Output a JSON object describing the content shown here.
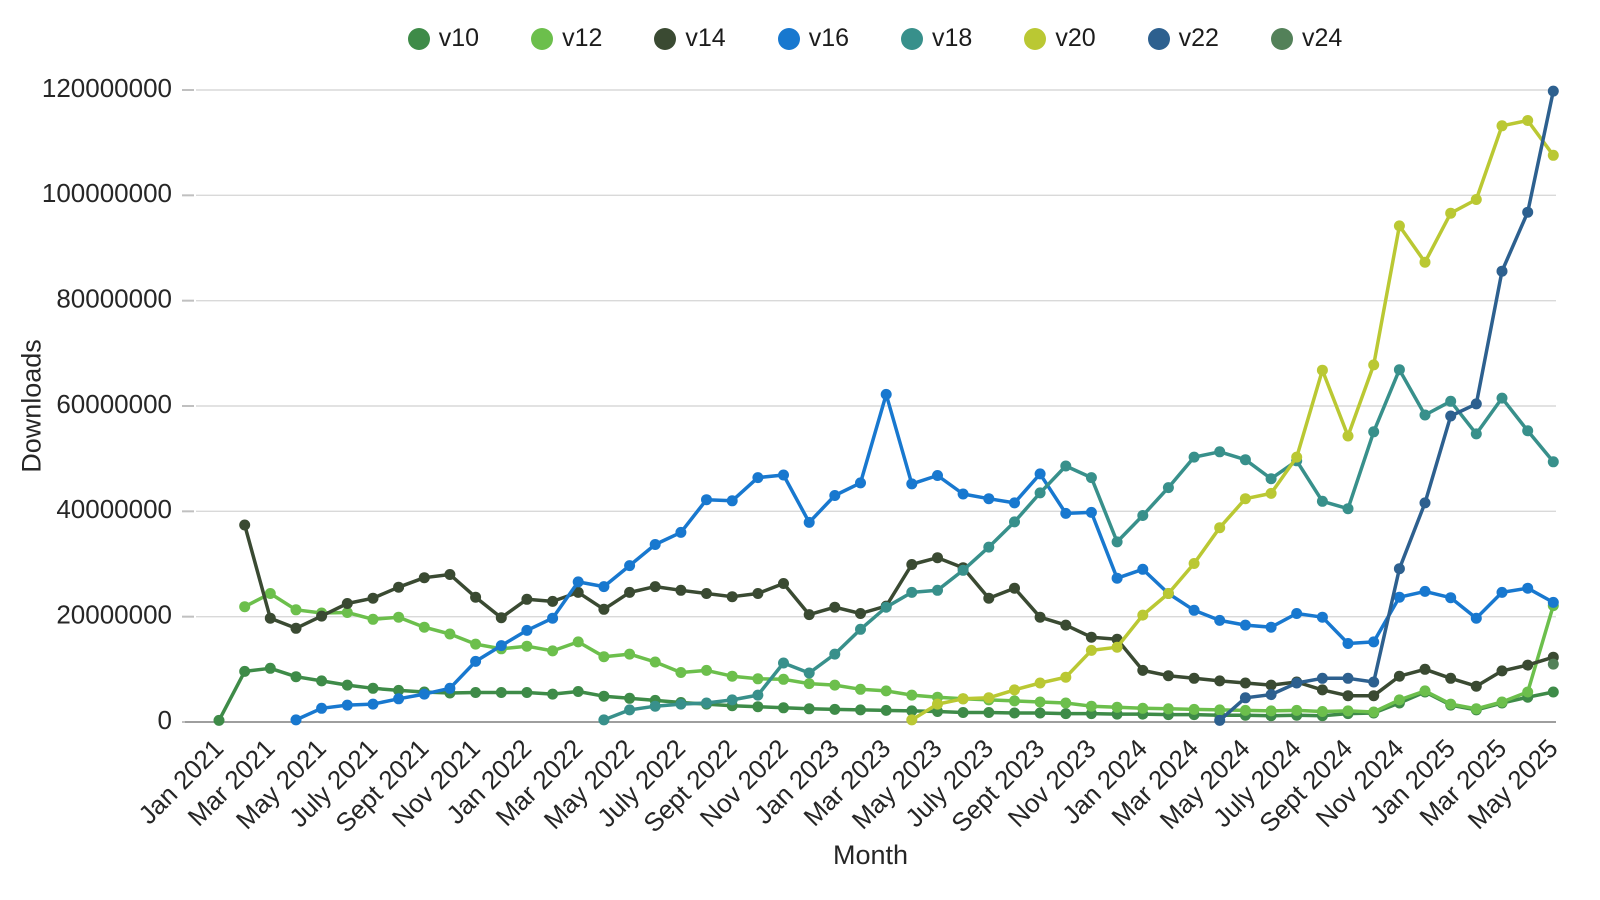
{
  "page": {
    "background": "#ffffff"
  },
  "chart_data": {
    "type": "line",
    "title": "",
    "xlabel": "Month",
    "ylabel": "Downloads",
    "legend_position": "top",
    "grid": "horizontal",
    "ylim": [
      0,
      120000000
    ],
    "yticks": [
      0,
      20000000,
      40000000,
      60000000,
      80000000,
      100000000,
      120000000
    ],
    "x_tick_every": 2,
    "x": [
      "Jan 2021",
      "Feb 2021",
      "Mar 2021",
      "Apr 2021",
      "May 2021",
      "June 2021",
      "July 2021",
      "Aug 2021",
      "Sept 2021",
      "Oct 2021",
      "Nov 2021",
      "Dec 2021",
      "Jan 2022",
      "Feb 2022",
      "Mar 2022",
      "Apr 2022",
      "May 2022",
      "June 2022",
      "July 2022",
      "Aug 2022",
      "Sept 2022",
      "Oct 2022",
      "Nov 2022",
      "Dec 2022",
      "Jan 2023",
      "Feb 2023",
      "Mar 2023",
      "Apr 2023",
      "May 2023",
      "June 2023",
      "July 2023",
      "Aug 2023",
      "Sept 2023",
      "Oct 2023",
      "Nov 2023",
      "Dec 2023",
      "Jan 2024",
      "Feb 2024",
      "Mar 2024",
      "Apr 2024",
      "May 2024",
      "June 2024",
      "July 2024",
      "Aug 2024",
      "Sept 2024",
      "Oct 2024",
      "Nov 2024",
      "Dec 2024",
      "Jan 2025",
      "Feb 2025",
      "Mar 2025",
      "Apr 2025",
      "May 2025"
    ],
    "series": [
      {
        "name": "v10",
        "color": "#3e8b48",
        "values": [
          300000,
          9600000,
          10200000,
          8600000,
          7800000,
          7000000,
          6400000,
          6000000,
          5700000,
          5500000,
          5600000,
          5600000,
          5600000,
          5300000,
          5800000,
          4900000,
          4500000,
          4100000,
          3700000,
          3400000,
          3100000,
          2900000,
          2700000,
          2500000,
          2400000,
          2300000,
          2200000,
          2100000,
          2000000,
          1800000,
          1800000,
          1700000,
          1700000,
          1600000,
          1600000,
          1500000,
          1500000,
          1400000,
          1400000,
          1300000,
          1300000,
          1200000,
          1300000,
          1200000,
          1600000,
          1700000,
          3600000,
          5700000,
          3200000,
          2300000,
          3600000,
          4700000,
          5700000
        ]
      },
      {
        "name": "v12",
        "color": "#6cbf4c",
        "values": [
          null,
          21900000,
          24400000,
          21300000,
          20700000,
          20800000,
          19500000,
          19900000,
          18000000,
          16700000,
          14800000,
          13900000,
          14400000,
          13500000,
          15200000,
          12400000,
          12900000,
          11400000,
          9400000,
          9800000,
          8700000,
          8200000,
          8100000,
          7300000,
          7000000,
          6200000,
          5900000,
          5100000,
          4700000,
          4400000,
          4200000,
          4000000,
          3800000,
          3600000,
          3000000,
          2800000,
          2600000,
          2500000,
          2400000,
          2300000,
          2200000,
          2100000,
          2200000,
          2000000,
          2100000,
          1900000,
          4200000,
          5900000,
          3400000,
          2500000,
          3800000,
          5700000,
          22100000
        ]
      },
      {
        "name": "v14",
        "color": "#3a4a32",
        "values": [
          null,
          37400000,
          19700000,
          17800000,
          20100000,
          22500000,
          23500000,
          25600000,
          27400000,
          28000000,
          23700000,
          19800000,
          23300000,
          22900000,
          24600000,
          21400000,
          24600000,
          25700000,
          25000000,
          24400000,
          23800000,
          24400000,
          26300000,
          20400000,
          21800000,
          20600000,
          22000000,
          29900000,
          31200000,
          29300000,
          23500000,
          25400000,
          19900000,
          18400000,
          16100000,
          15700000,
          9800000,
          8800000,
          8300000,
          7800000,
          7400000,
          7000000,
          7600000,
          6100000,
          5000000,
          5000000,
          8700000,
          10000000,
          8300000,
          6800000,
          9700000,
          10800000,
          12300000
        ]
      },
      {
        "name": "v16",
        "color": "#1878cf",
        "values": [
          null,
          null,
          null,
          400000,
          2600000,
          3200000,
          3400000,
          4400000,
          5300000,
          6400000,
          11500000,
          14500000,
          17400000,
          19700000,
          26600000,
          25700000,
          29700000,
          33700000,
          36000000,
          42200000,
          42000000,
          46400000,
          46900000,
          37900000,
          43000000,
          45400000,
          62200000,
          45200000,
          46800000,
          43300000,
          42400000,
          41600000,
          47100000,
          39600000,
          39800000,
          27300000,
          29000000,
          24400000,
          21200000,
          19300000,
          18400000,
          18000000,
          20600000,
          19900000,
          14900000,
          15200000,
          23700000,
          24800000,
          23600000,
          19700000,
          24600000,
          25400000,
          22700000
        ]
      },
      {
        "name": "v18",
        "color": "#38908b",
        "values": [
          null,
          null,
          null,
          null,
          null,
          null,
          null,
          null,
          null,
          null,
          null,
          null,
          null,
          null,
          null,
          400000,
          2300000,
          3000000,
          3400000,
          3600000,
          4200000,
          5100000,
          11200000,
          9300000,
          12900000,
          17600000,
          21800000,
          24600000,
          25000000,
          28800000,
          33200000,
          38000000,
          43500000,
          48600000,
          46400000,
          34200000,
          39200000,
          44500000,
          50300000,
          51300000,
          49800000,
          46200000,
          49600000,
          41900000,
          40500000,
          55100000,
          66900000,
          58300000,
          60900000,
          54700000,
          61500000,
          55300000,
          49400000
        ]
      },
      {
        "name": "v20",
        "color": "#bac833",
        "values": [
          null,
          null,
          null,
          null,
          null,
          null,
          null,
          null,
          null,
          null,
          null,
          null,
          null,
          null,
          null,
          null,
          null,
          null,
          null,
          null,
          null,
          null,
          null,
          null,
          null,
          null,
          null,
          400000,
          3400000,
          4400000,
          4600000,
          6100000,
          7400000,
          8500000,
          13600000,
          14200000,
          20300000,
          24400000,
          30100000,
          36900000,
          42400000,
          43400000,
          50300000,
          66800000,
          54300000,
          67800000,
          94200000,
          87300000,
          96600000,
          99200000,
          113200000,
          114200000,
          107600000
        ]
      },
      {
        "name": "v22",
        "color": "#2d608f",
        "values": [
          null,
          null,
          null,
          null,
          null,
          null,
          null,
          null,
          null,
          null,
          null,
          null,
          null,
          null,
          null,
          null,
          null,
          null,
          null,
          null,
          null,
          null,
          null,
          null,
          null,
          null,
          null,
          null,
          null,
          null,
          null,
          null,
          null,
          null,
          null,
          null,
          null,
          null,
          null,
          300000,
          4600000,
          5200000,
          7400000,
          8300000,
          8300000,
          7600000,
          29100000,
          41600000,
          58100000,
          60400000,
          85600000,
          96800000,
          119800000
        ]
      },
      {
        "name": "v24",
        "color": "#538159",
        "values": [
          null,
          null,
          null,
          null,
          null,
          null,
          null,
          null,
          null,
          null,
          null,
          null,
          null,
          null,
          null,
          null,
          null,
          null,
          null,
          null,
          null,
          null,
          null,
          null,
          null,
          null,
          null,
          null,
          null,
          null,
          null,
          null,
          null,
          null,
          null,
          null,
          null,
          null,
          null,
          null,
          null,
          null,
          null,
          null,
          null,
          null,
          null,
          null,
          null,
          null,
          null,
          null,
          11000000
        ]
      }
    ]
  }
}
